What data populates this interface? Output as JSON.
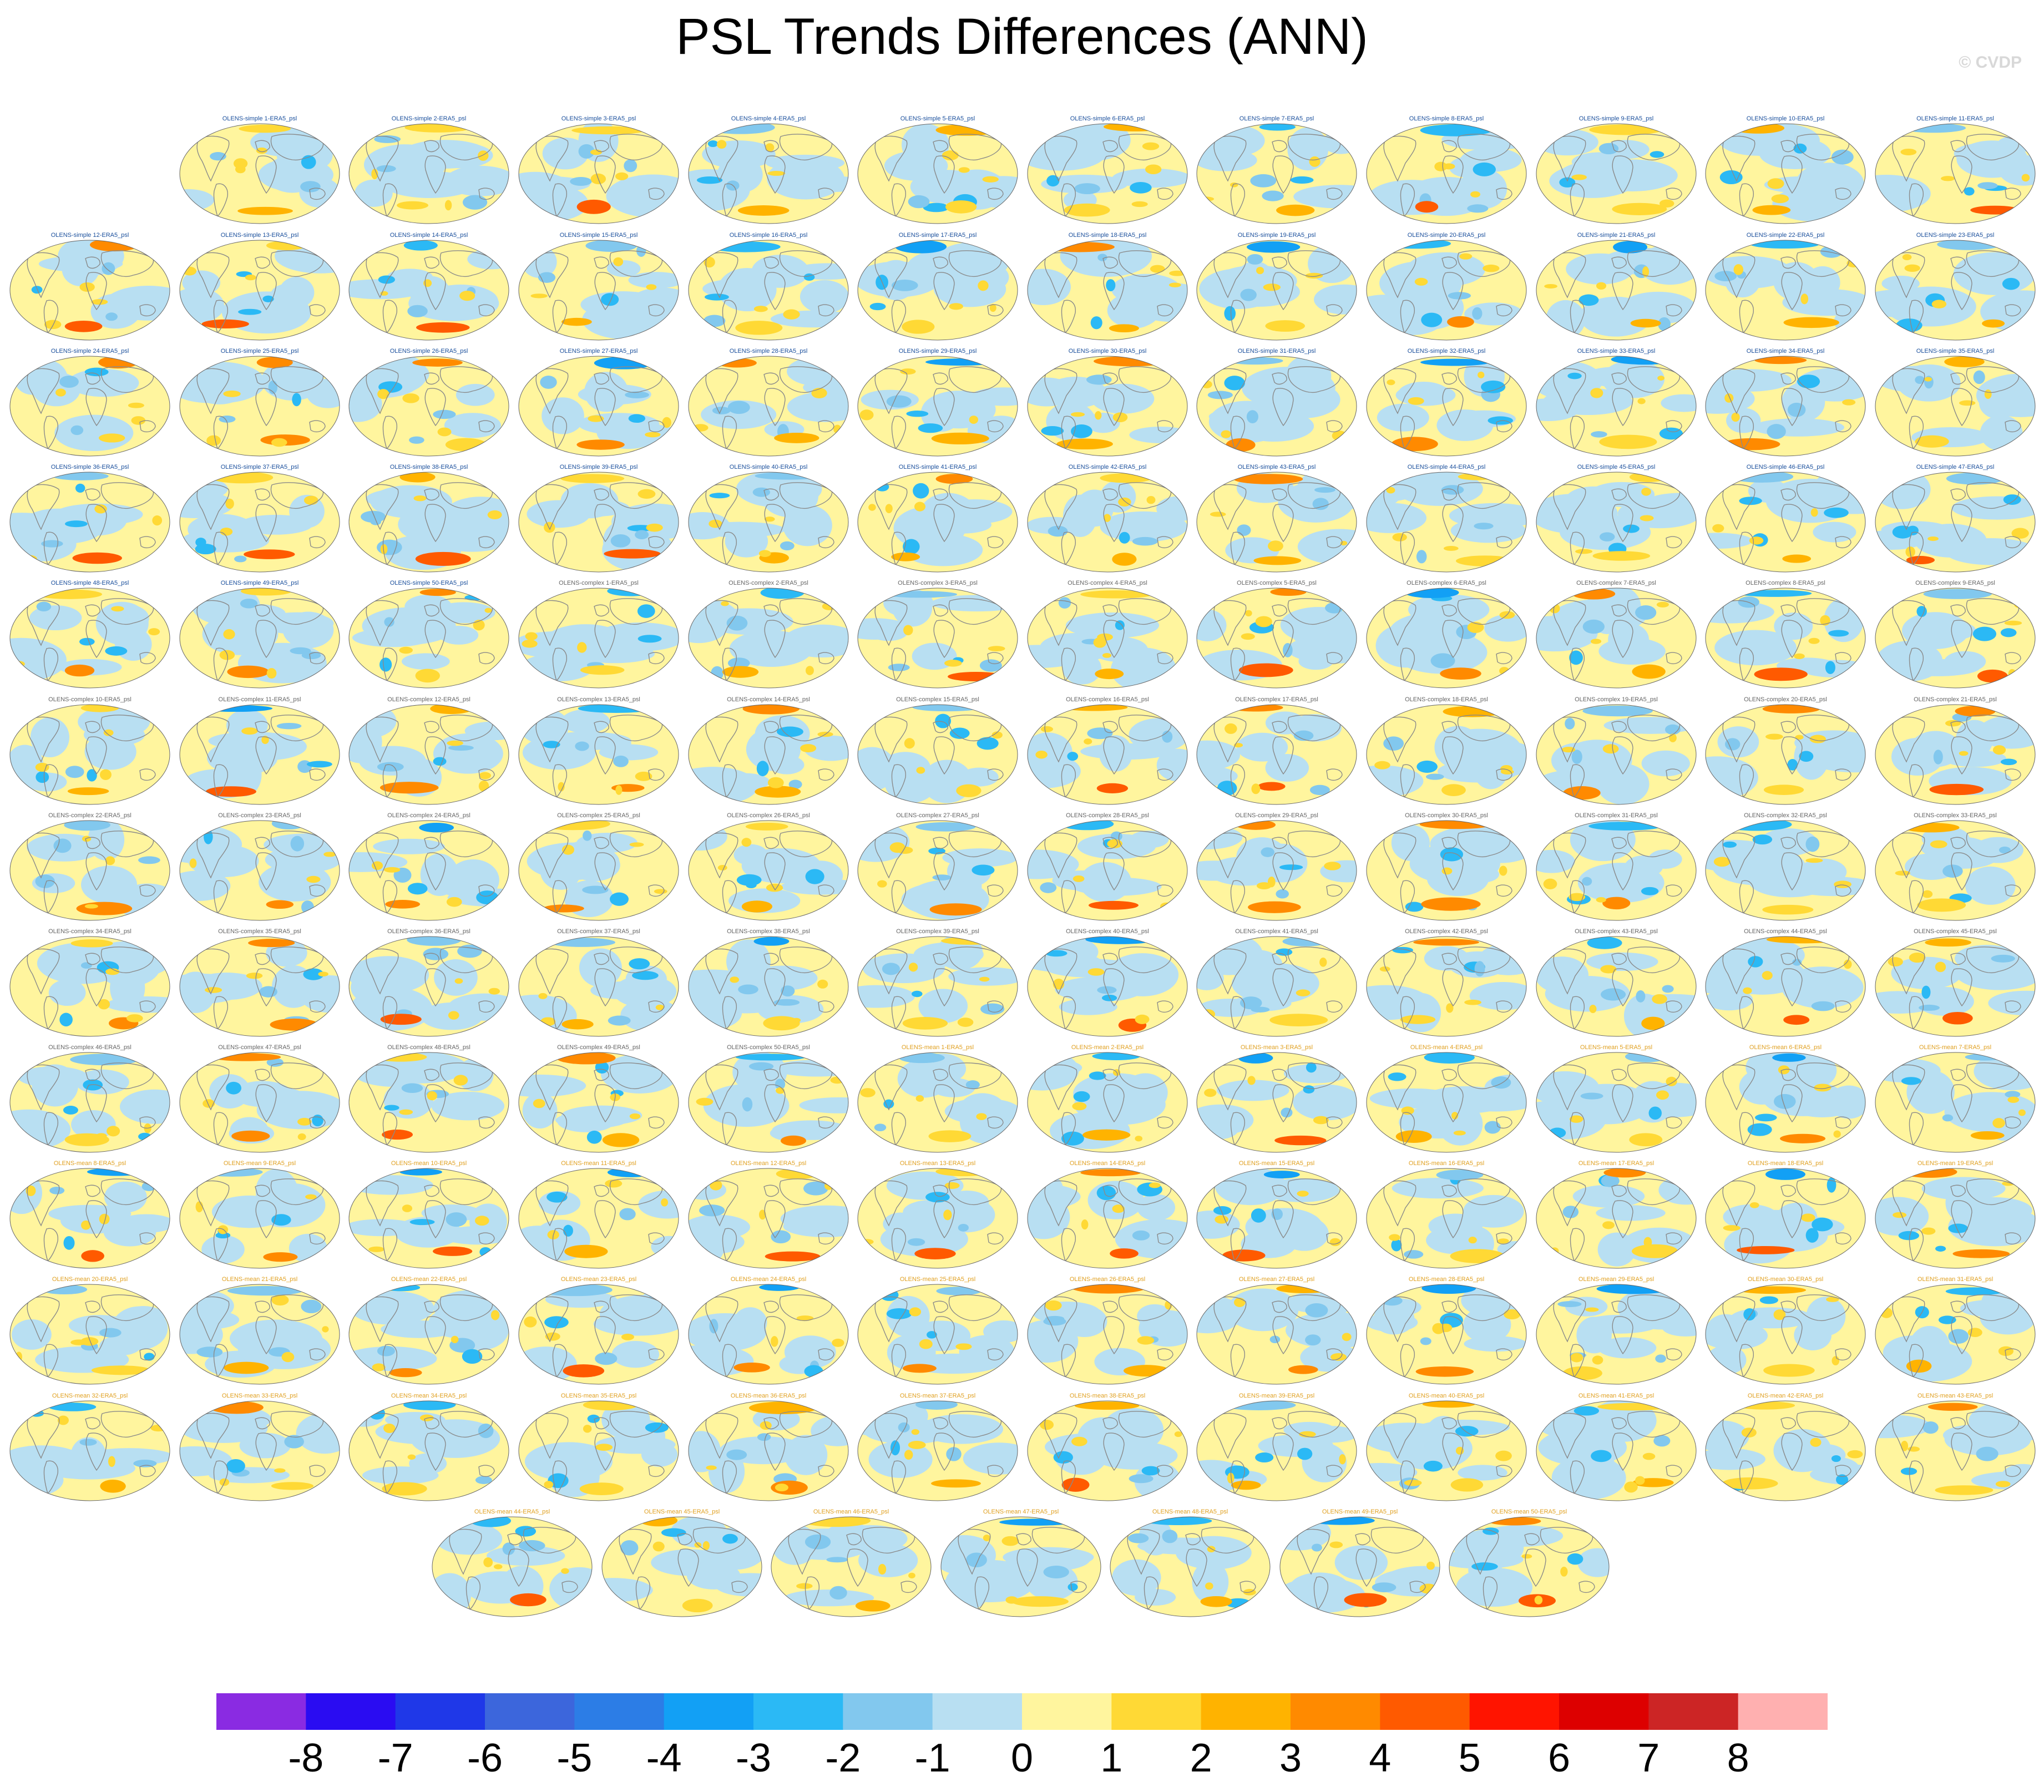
{
  "title": "PSL Trends Differences (ANN)",
  "credit": "© CVDP",
  "colors": {
    "simple_label": "#1a4f9c",
    "complex_label": "#666666",
    "mean_label": "#e0a020",
    "land_outline": "#8a8a8a",
    "panel_edge": "#666666"
  },
  "chart_data": {
    "type": "heatmap",
    "projection": "global map (Hammer/Robinson-like)",
    "variable": "psl",
    "reference": "ERA5",
    "panel_labels": [
      "OLENS-simple 1-ERA5_psl",
      "OLENS-simple 2-ERA5_psl",
      "OLENS-simple 3-ERA5_psl",
      "OLENS-simple 4-ERA5_psl",
      "OLENS-simple 5-ERA5_psl",
      "OLENS-simple 6-ERA5_psl",
      "OLENS-simple 7-ERA5_psl",
      "OLENS-simple 8-ERA5_psl",
      "OLENS-simple 9-ERA5_psl",
      "OLENS-simple 10-ERA5_psl",
      "OLENS-simple 11-ERA5_psl",
      "OLENS-simple 12-ERA5_psl",
      "OLENS-simple 13-ERA5_psl",
      "OLENS-simple 14-ERA5_psl",
      "OLENS-simple 15-ERA5_psl",
      "OLENS-simple 16-ERA5_psl",
      "OLENS-simple 17-ERA5_psl",
      "OLENS-simple 18-ERA5_psl",
      "OLENS-simple 19-ERA5_psl",
      "OLENS-simple 20-ERA5_psl",
      "OLENS-simple 21-ERA5_psl",
      "OLENS-simple 22-ERA5_psl",
      "OLENS-simple 23-ERA5_psl",
      "OLENS-simple 24-ERA5_psl",
      "OLENS-simple 25-ERA5_psl",
      "OLENS-simple 26-ERA5_psl",
      "OLENS-simple 27-ERA5_psl",
      "OLENS-simple 28-ERA5_psl",
      "OLENS-simple 29-ERA5_psl",
      "OLENS-simple 30-ERA5_psl",
      "OLENS-simple 31-ERA5_psl",
      "OLENS-simple 32-ERA5_psl",
      "OLENS-simple 33-ERA5_psl",
      "OLENS-simple 34-ERA5_psl",
      "OLENS-simple 35-ERA5_psl",
      "OLENS-simple 36-ERA5_psl",
      "OLENS-simple 37-ERA5_psl",
      "OLENS-simple 38-ERA5_psl",
      "OLENS-simple 39-ERA5_psl",
      "OLENS-simple 40-ERA5_psl",
      "OLENS-simple 41-ERA5_psl",
      "OLENS-simple 42-ERA5_psl",
      "OLENS-simple 43-ERA5_psl",
      "OLENS-simple 44-ERA5_psl",
      "OLENS-simple 45-ERA5_psl",
      "OLENS-simple 46-ERA5_psl",
      "OLENS-simple 47-ERA5_psl",
      "OLENS-simple 48-ERA5_psl",
      "OLENS-simple 49-ERA5_psl",
      "OLENS-simple 50-ERA5_psl",
      "OLENS-complex 1-ERA5_psl",
      "OLENS-complex 2-ERA5_psl",
      "OLENS-complex 3-ERA5_psl",
      "OLENS-complex 4-ERA5_psl",
      "OLENS-complex 5-ERA5_psl",
      "OLENS-complex 6-ERA5_psl",
      "OLENS-complex 7-ERA5_psl",
      "OLENS-complex 8-ERA5_psl",
      "OLENS-complex 9-ERA5_psl",
      "OLENS-complex 10-ERA5_psl",
      "OLENS-complex 11-ERA5_psl",
      "OLENS-complex 12-ERA5_psl",
      "OLENS-complex 13-ERA5_psl",
      "OLENS-complex 14-ERA5_psl",
      "OLENS-complex 15-ERA5_psl",
      "OLENS-complex 16-ERA5_psl",
      "OLENS-complex 17-ERA5_psl",
      "OLENS-complex 18-ERA5_psl",
      "OLENS-complex 19-ERA5_psl",
      "OLENS-complex 20-ERA5_psl",
      "OLENS-complex 21-ERA5_psl",
      "OLENS-complex 22-ERA5_psl",
      "OLENS-complex 23-ERA5_psl",
      "OLENS-complex 24-ERA5_psl",
      "OLENS-complex 25-ERA5_psl",
      "OLENS-complex 26-ERA5_psl",
      "OLENS-complex 27-ERA5_psl",
      "OLENS-complex 28-ERA5_psl",
      "OLENS-complex 29-ERA5_psl",
      "OLENS-complex 30-ERA5_psl",
      "OLENS-complex 31-ERA5_psl",
      "OLENS-complex 32-ERA5_psl",
      "OLENS-complex 33-ERA5_psl",
      "OLENS-complex 34-ERA5_psl",
      "OLENS-complex 35-ERA5_psl",
      "OLENS-complex 36-ERA5_psl",
      "OLENS-complex 37-ERA5_psl",
      "OLENS-complex 38-ERA5_psl",
      "OLENS-complex 39-ERA5_psl",
      "OLENS-complex 40-ERA5_psl",
      "OLENS-complex 41-ERA5_psl",
      "OLENS-complex 42-ERA5_psl",
      "OLENS-complex 43-ERA5_psl",
      "OLENS-complex 44-ERA5_psl",
      "OLENS-complex 45-ERA5_psl",
      "OLENS-complex 46-ERA5_psl",
      "OLENS-complex 47-ERA5_psl",
      "OLENS-complex 48-ERA5_psl",
      "OLENS-complex 49-ERA5_psl",
      "OLENS-complex 50-ERA5_psl",
      "OLENS-mean 1-ERA5_psl",
      "OLENS-mean 2-ERA5_psl",
      "OLENS-mean 3-ERA5_psl",
      "OLENS-mean 4-ERA5_psl",
      "OLENS-mean 5-ERA5_psl",
      "OLENS-mean 6-ERA5_psl",
      "OLENS-mean 7-ERA5_psl",
      "OLENS-mean 8-ERA5_psl",
      "OLENS-mean 9-ERA5_psl",
      "OLENS-mean 10-ERA5_psl",
      "OLENS-mean 11-ERA5_psl",
      "OLENS-mean 12-ERA5_psl",
      "OLENS-mean 13-ERA5_psl",
      "OLENS-mean 14-ERA5_psl",
      "OLENS-mean 15-ERA5_psl",
      "OLENS-mean 16-ERA5_psl",
      "OLENS-mean 17-ERA5_psl",
      "OLENS-mean 18-ERA5_psl",
      "OLENS-mean 19-ERA5_psl",
      "OLENS-mean 20-ERA5_psl",
      "OLENS-mean 21-ERA5_psl",
      "OLENS-mean 22-ERA5_psl",
      "OLENS-mean 23-ERA5_psl",
      "OLENS-mean 24-ERA5_psl",
      "OLENS-mean 25-ERA5_psl",
      "OLENS-mean 26-ERA5_psl",
      "OLENS-mean 27-ERA5_psl",
      "OLENS-mean 28-ERA5_psl",
      "OLENS-mean 29-ERA5_psl",
      "OLENS-mean 30-ERA5_psl",
      "OLENS-mean 31-ERA5_psl",
      "OLENS-mean 32-ERA5_psl",
      "OLENS-mean 33-ERA5_psl",
      "OLENS-mean 34-ERA5_psl",
      "OLENS-mean 35-ERA5_psl",
      "OLENS-mean 36-ERA5_psl",
      "OLENS-mean 37-ERA5_psl",
      "OLENS-mean 38-ERA5_psl",
      "OLENS-mean 39-ERA5_psl",
      "OLENS-mean 40-ERA5_psl",
      "OLENS-mean 41-ERA5_psl",
      "OLENS-mean 42-ERA5_psl",
      "OLENS-mean 43-ERA5_psl",
      "OLENS-mean 44-ERA5_psl",
      "OLENS-mean 45-ERA5_psl",
      "OLENS-mean 46-ERA5_psl",
      "OLENS-mean 47-ERA5_psl",
      "OLENS-mean 48-ERA5_psl",
      "OLENS-mean 49-ERA5_psl",
      "OLENS-mean 50-ERA5_psl"
    ],
    "colorbar": {
      "levels": [
        -8,
        -7,
        -6,
        -5,
        -4,
        -3,
        -2,
        -1,
        0,
        1,
        2,
        3,
        4,
        5,
        6,
        7,
        8
      ],
      "tick_labels": [
        "-8",
        "-7",
        "-6",
        "-5",
        "-4",
        "-3",
        "-2",
        "-1",
        "0",
        "1",
        "2",
        "3",
        "4",
        "5",
        "6",
        "7",
        "8"
      ],
      "colors": [
        "#8a2be2",
        "#2a0cf2",
        "#1f38e8",
        "#3c66dc",
        "#2c7de6",
        "#12a0f5",
        "#2bb9f5",
        "#82c8ee",
        "#b8dff2",
        "#fff59e",
        "#ffd935",
        "#ffb300",
        "#ff8a00",
        "#ff5a00",
        "#ff1400",
        "#dd0000",
        "#cc2525",
        "#ffb0b0"
      ]
    }
  }
}
